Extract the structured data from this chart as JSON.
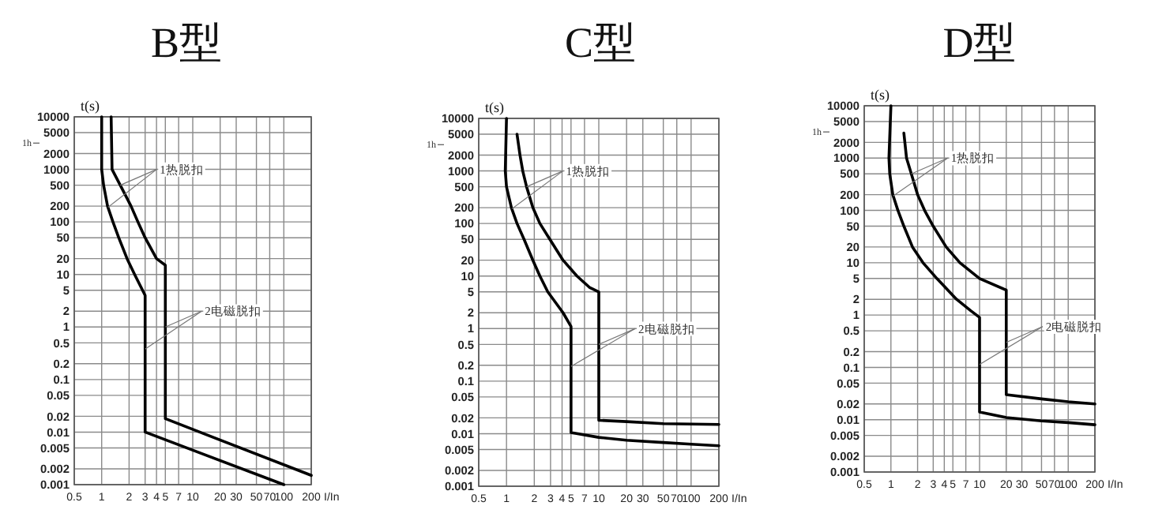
{
  "chart_data": [
    {
      "type": "line",
      "title": "B型",
      "xlabel": "I/In",
      "ylabel": "t(s)",
      "log": "xy",
      "grid": true,
      "xlim": [
        0.5,
        200
      ],
      "xticks": [
        0.5,
        1,
        2,
        3,
        4,
        5,
        7,
        10,
        20,
        30,
        50,
        70,
        100,
        200
      ],
      "ylim": [
        0.001,
        10000
      ],
      "yticks": [
        0.001,
        0.002,
        0.005,
        0.01,
        0.02,
        0.05,
        0.1,
        0.2,
        0.5,
        1,
        2,
        5,
        10,
        20,
        50,
        100,
        200,
        500,
        1000,
        2000,
        5000,
        10000
      ],
      "series": [
        {
          "color": "#000000",
          "x": [
            1,
            1,
            1.05,
            1.16,
            1.33,
            1.54,
            1.9,
            2.3,
            3,
            3,
            100
          ],
          "values": [
            10000,
            1000,
            500,
            200,
            100,
            50,
            20,
            10,
            4,
            0.01,
            0.001
          ]
        },
        {
          "color": "#000000",
          "x": [
            1.27,
            1.3,
            1.6,
            2.1,
            2.5,
            3,
            4,
            5,
            5,
            200
          ],
          "values": [
            10000,
            1000,
            500,
            200,
            100,
            50,
            20,
            15,
            0.018,
            0.0015
          ]
        }
      ],
      "annotations": [
        "1h",
        {
          "text": "1热脱扣",
          "x": 1.6,
          "y": 500
        },
        {
          "text": "2电磁脱扣",
          "x": 5,
          "y": 1
        }
      ]
    },
    {
      "type": "line",
      "title": "C型",
      "xlabel": "I/In",
      "ylabel": "t(s)",
      "log": "xy",
      "grid": true,
      "xlim": [
        0.5,
        200
      ],
      "xticks": [
        0.5,
        1,
        2,
        3,
        4,
        5,
        7,
        10,
        20,
        30,
        50,
        70,
        100,
        200
      ],
      "ylim": [
        0.001,
        10000
      ],
      "yticks": [
        0.001,
        0.002,
        0.005,
        0.01,
        0.02,
        0.05,
        0.1,
        0.2,
        0.5,
        1,
        2,
        5,
        10,
        20,
        50,
        100,
        200,
        500,
        1000,
        2000,
        5000,
        10000
      ],
      "series": [
        {
          "color": "#000000",
          "x": [
            1,
            0.97,
            1,
            1.13,
            1.3,
            1.55,
            1.93,
            2.3,
            2.8,
            4.1,
            5,
            5,
            10,
            20,
            50,
            100,
            200
          ],
          "values": [
            10000,
            1000,
            500,
            200,
            100,
            50,
            20,
            10,
            5,
            2,
            1.1,
            0.0105,
            0.0085,
            0.0075,
            0.0068,
            0.0063,
            0.0059
          ]
        },
        {
          "color": "#000000",
          "x": [
            1.3,
            1.4,
            1.5,
            1.65,
            1.93,
            2.3,
            2.95,
            4.1,
            5.8,
            8,
            10,
            10,
            20,
            50,
            200
          ],
          "values": [
            5000,
            2000,
            1000,
            500,
            200,
            100,
            50,
            20,
            10,
            6,
            5,
            0.018,
            0.017,
            0.0155,
            0.015
          ]
        }
      ],
      "annotations": [
        "1h",
        {
          "text": "1热脱扣",
          "x": 1.65,
          "y": 500
        },
        {
          "text": "2电磁脱扣",
          "x": 10,
          "y": 0.5
        }
      ]
    },
    {
      "type": "line",
      "title": "D型",
      "xlabel": "I/In",
      "ylabel": "t(s)",
      "log": "xy",
      "grid": true,
      "xlim": [
        0.5,
        200
      ],
      "xticks": [
        0.5,
        1,
        2,
        3,
        4,
        5,
        7,
        10,
        20,
        30,
        50,
        70,
        100,
        200
      ],
      "ylim": [
        0.001,
        10000
      ],
      "yticks": [
        0.001,
        0.002,
        0.005,
        0.01,
        0.02,
        0.05,
        0.1,
        0.2,
        0.5,
        1,
        2,
        5,
        10,
        20,
        50,
        100,
        200,
        500,
        1000,
        2000,
        5000,
        10000
      ],
      "series": [
        {
          "color": "#000000",
          "x": [
            1,
            0.95,
            0.97,
            1.05,
            1.2,
            1.4,
            1.75,
            2.3,
            3.3,
            5.5,
            8,
            10,
            10,
            20,
            50,
            100,
            200
          ],
          "values": [
            10000,
            1000,
            500,
            200,
            100,
            50,
            20,
            10,
            5,
            2,
            1.2,
            0.9,
            0.014,
            0.011,
            0.0095,
            0.0088,
            0.008
          ]
        },
        {
          "color": "#000000",
          "x": [
            1.4,
            1.5,
            1.7,
            2,
            2.4,
            3,
            4.2,
            6,
            10,
            20,
            20,
            50,
            100,
            200
          ],
          "values": [
            3000,
            1000,
            500,
            200,
            100,
            50,
            20,
            10,
            5,
            3,
            0.03,
            0.025,
            0.022,
            0.02
          ]
        }
      ],
      "annotations": [
        "1h",
        {
          "text": "1热脱扣",
          "x": 1.7,
          "y": 500
        },
        {
          "text": "2电磁脱扣",
          "x": 20,
          "y": 0.3
        }
      ]
    }
  ]
}
